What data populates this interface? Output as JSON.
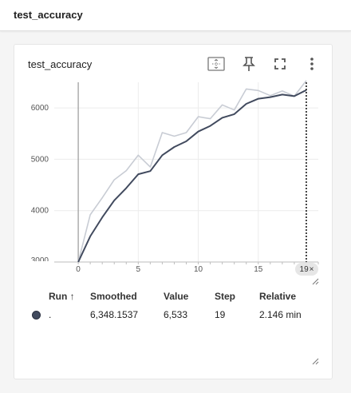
{
  "header": {
    "title": "test_accuracy"
  },
  "card": {
    "title": "test_accuracy",
    "toolbar": {
      "fit_icon": "fit-domain-icon",
      "pin_icon": "pin-icon",
      "fullscreen_icon": "fullscreen-icon",
      "more_icon": "more-vert-icon"
    },
    "step_badge": {
      "step": "19",
      "close_glyph": "×"
    }
  },
  "chart_data": {
    "type": "line",
    "title": "",
    "xlabel": "",
    "ylabel": "",
    "xlim": [
      -2,
      20
    ],
    "ylim": [
      3000,
      6500
    ],
    "x_ticks": [
      "0",
      "5",
      "10",
      "15"
    ],
    "y_ticks": [
      "4000",
      "5000",
      "6000"
    ],
    "y_tick_cutoff": "3000",
    "grid": true,
    "cursor_step": 19,
    "series": [
      {
        "role": "raw",
        "color": "#c8ccd4",
        "x": [
          0,
          1,
          2,
          3,
          4,
          5,
          6,
          7,
          8,
          9,
          10,
          11,
          12,
          13,
          14,
          15,
          16,
          17,
          18,
          19
        ],
        "y": [
          3000,
          3920,
          4250,
          4600,
          4780,
          5080,
          4850,
          5520,
          5450,
          5520,
          5830,
          5790,
          6060,
          5960,
          6370,
          6340,
          6240,
          6330,
          6230,
          6533
        ]
      },
      {
        "role": "smoothed",
        "color": "#414a5e",
        "x": [
          0,
          1,
          2,
          3,
          4,
          5,
          6,
          7,
          8,
          9,
          10,
          11,
          12,
          13,
          14,
          15,
          16,
          17,
          18,
          19
        ],
        "y": [
          3000,
          3500,
          3870,
          4200,
          4440,
          4710,
          4770,
          5080,
          5240,
          5350,
          5540,
          5650,
          5810,
          5880,
          6080,
          6180,
          6210,
          6260,
          6230,
          6348.15
        ]
      }
    ]
  },
  "table": {
    "headers": {
      "run": "Run",
      "sort_glyph": "↑",
      "smoothed": "Smoothed",
      "value": "Value",
      "step": "Step",
      "relative": "Relative"
    },
    "rows": [
      {
        "run": ".",
        "smoothed": "6,348.1537",
        "value": "6,533",
        "step": "19",
        "relative": "2.146 min",
        "color": "#414a5e"
      }
    ]
  }
}
